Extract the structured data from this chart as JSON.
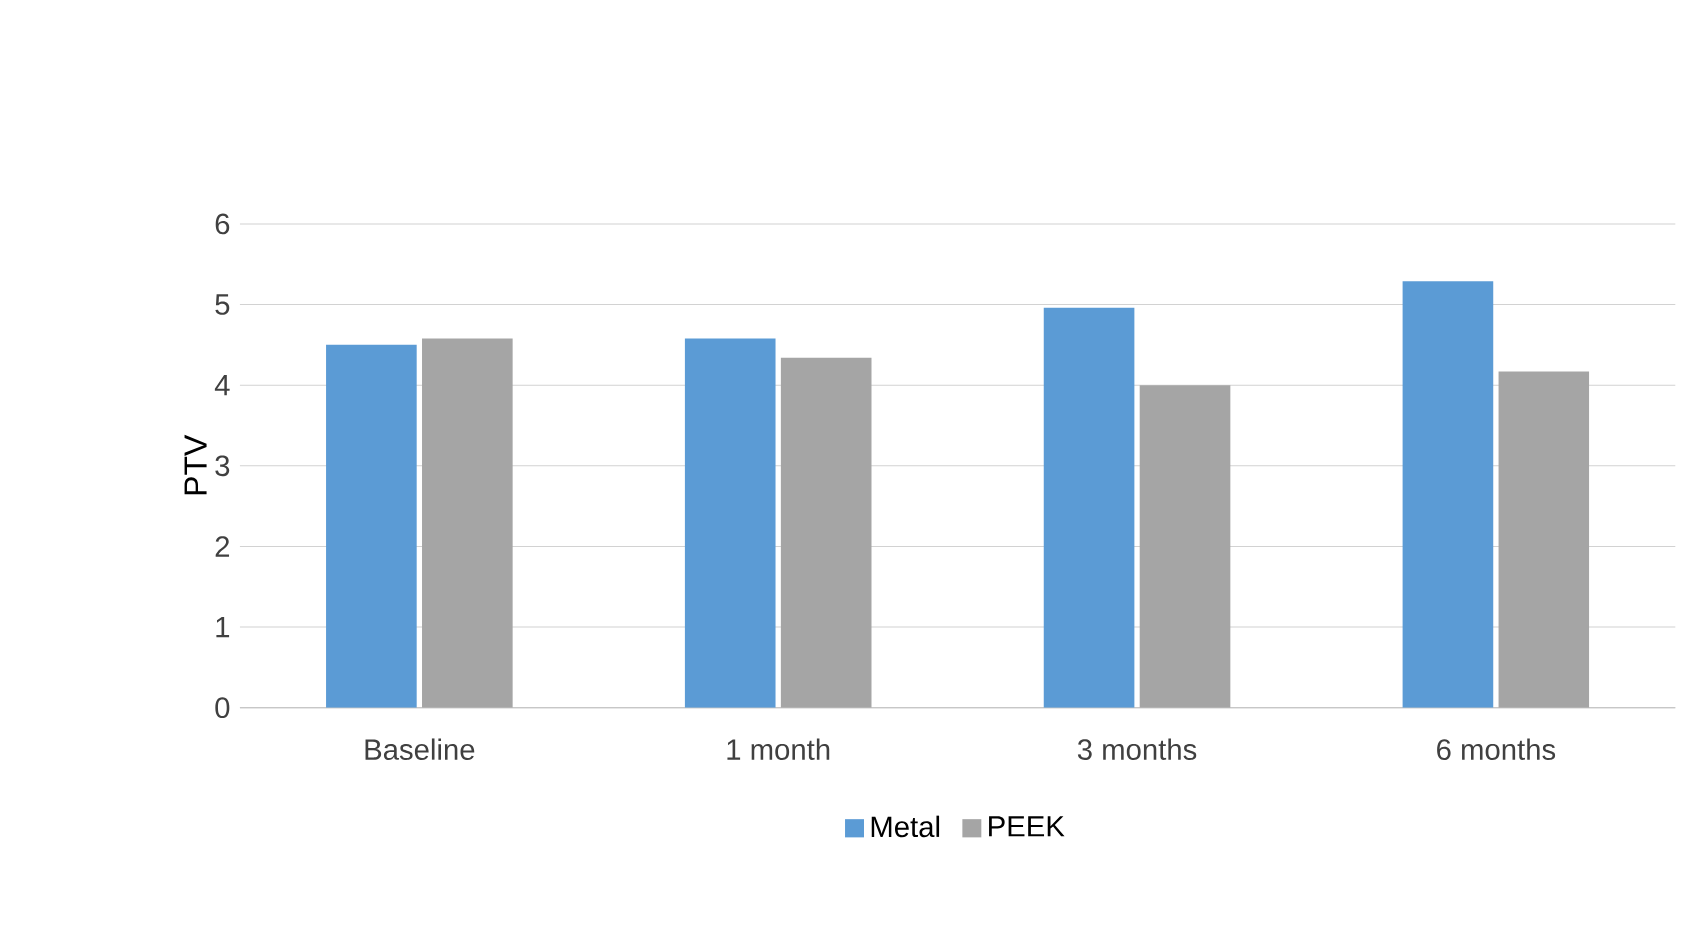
{
  "chart_data": {
    "type": "bar",
    "ylabel": "PTV",
    "categories": [
      "Baseline",
      "1 month",
      "3  months",
      "6 months"
    ],
    "series": [
      {
        "name": "Metal",
        "color": "#5b9bd5",
        "values": [
          4.5,
          4.58,
          4.96,
          5.29
        ]
      },
      {
        "name": "PEEK",
        "color": "#a5a5a5",
        "values": [
          4.58,
          4.34,
          4.0,
          4.17
        ]
      }
    ],
    "ylim": [
      0,
      6
    ],
    "yticks": [
      0,
      1,
      2,
      3,
      4,
      5,
      6
    ],
    "grid": "y",
    "legend": "bottom"
  }
}
